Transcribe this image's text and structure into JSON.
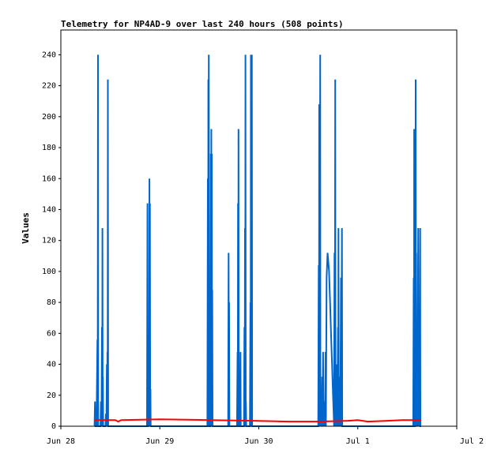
{
  "chart_data": {
    "type": "line",
    "title": "Telemetry for NP4AD-9 over last 240 hours (508 points)",
    "ylabel": "Values",
    "xlabel": "",
    "ylim": [
      0,
      256
    ],
    "xlim": [
      0,
      4
    ],
    "x_ticks": [
      {
        "x": 0,
        "label": "Jun 28"
      },
      {
        "x": 1,
        "label": "Jun 29"
      },
      {
        "x": 2,
        "label": "Jun 30"
      },
      {
        "x": 3,
        "label": "Jul 1"
      },
      {
        "x": 4,
        "label": "Jul 2"
      }
    ],
    "y_ticks": [
      0,
      20,
      40,
      60,
      80,
      100,
      120,
      140,
      160,
      180,
      200,
      220,
      240
    ],
    "grid": false,
    "legend": "none",
    "series": [
      {
        "color": "#0066cc",
        "points": [
          [
            0.34,
            0
          ],
          [
            0.345,
            16
          ],
          [
            0.35,
            0
          ],
          [
            0.36,
            0
          ],
          [
            0.37,
            56
          ],
          [
            0.372,
            0
          ],
          [
            0.375,
            240
          ],
          [
            0.378,
            0
          ],
          [
            0.4,
            0
          ],
          [
            0.405,
            16
          ],
          [
            0.41,
            0
          ],
          [
            0.415,
            64
          ],
          [
            0.418,
            0
          ],
          [
            0.42,
            128
          ],
          [
            0.423,
            0
          ],
          [
            0.425,
            32
          ],
          [
            0.428,
            0
          ],
          [
            0.45,
            0
          ],
          [
            0.455,
            8
          ],
          [
            0.46,
            0
          ],
          [
            0.465,
            40
          ],
          [
            0.468,
            0
          ],
          [
            0.47,
            48
          ],
          [
            0.473,
            0
          ],
          [
            0.475,
            224
          ],
          [
            0.478,
            0
          ],
          [
            0.49,
            0
          ],
          [
            0.87,
            0
          ],
          [
            0.875,
            144
          ],
          [
            0.878,
            0
          ],
          [
            0.88,
            0
          ],
          [
            0.89,
            40
          ],
          [
            0.892,
            0
          ],
          [
            0.895,
            160
          ],
          [
            0.898,
            0
          ],
          [
            0.9,
            144
          ],
          [
            0.903,
            0
          ],
          [
            0.905,
            24
          ],
          [
            0.908,
            0
          ],
          [
            1.48,
            0
          ],
          [
            1.485,
            160
          ],
          [
            1.488,
            0
          ],
          [
            1.49,
            224
          ],
          [
            1.493,
            0
          ],
          [
            1.495,
            240
          ],
          [
            1.498,
            0
          ],
          [
            1.51,
            0
          ],
          [
            1.515,
            176
          ],
          [
            1.518,
            0
          ],
          [
            1.52,
            192
          ],
          [
            1.523,
            0
          ],
          [
            1.525,
            176
          ],
          [
            1.528,
            0
          ],
          [
            1.53,
            88
          ],
          [
            1.533,
            0
          ],
          [
            1.69,
            0
          ],
          [
            1.695,
            112
          ],
          [
            1.698,
            0
          ],
          [
            1.7,
            80
          ],
          [
            1.703,
            0
          ],
          [
            1.78,
            0
          ],
          [
            1.785,
            48
          ],
          [
            1.788,
            0
          ],
          [
            1.79,
            144
          ],
          [
            1.793,
            0
          ],
          [
            1.795,
            192
          ],
          [
            1.798,
            0
          ],
          [
            1.81,
            0
          ],
          [
            1.815,
            48
          ],
          [
            1.818,
            0
          ],
          [
            1.85,
            0
          ],
          [
            1.855,
            64
          ],
          [
            1.858,
            0
          ],
          [
            1.86,
            128
          ],
          [
            1.863,
            0
          ],
          [
            1.865,
            240
          ],
          [
            1.868,
            0
          ],
          [
            1.87,
            16
          ],
          [
            1.873,
            0
          ],
          [
            1.91,
            0
          ],
          [
            1.915,
            80
          ],
          [
            1.918,
            0
          ],
          [
            1.92,
            240
          ],
          [
            1.923,
            0
          ],
          [
            1.93,
            240
          ],
          [
            1.933,
            0
          ],
          [
            2.6,
            0
          ],
          [
            2.605,
            104
          ],
          [
            2.608,
            0
          ],
          [
            2.61,
            208
          ],
          [
            2.613,
            0
          ],
          [
            2.62,
            240
          ],
          [
            2.623,
            0
          ],
          [
            2.63,
            16
          ],
          [
            2.633,
            0
          ],
          [
            2.64,
            32
          ],
          [
            2.643,
            0
          ],
          [
            2.65,
            48
          ],
          [
            2.653,
            0
          ],
          [
            2.665,
            16
          ],
          [
            2.668,
            0
          ],
          [
            2.675,
            48
          ],
          [
            2.678,
            0
          ],
          [
            2.685,
            96
          ],
          [
            2.69,
            104
          ],
          [
            2.695,
            112
          ],
          [
            2.7,
            108
          ],
          [
            2.71,
            100
          ],
          [
            2.72,
            80
          ],
          [
            2.73,
            60
          ],
          [
            2.74,
            40
          ],
          [
            2.75,
            20
          ],
          [
            2.755,
            10
          ],
          [
            2.76,
            0
          ],
          [
            2.765,
            112
          ],
          [
            2.768,
            0
          ],
          [
            2.772,
            224
          ],
          [
            2.775,
            0
          ],
          [
            2.78,
            16
          ],
          [
            2.783,
            0
          ],
          [
            2.79,
            40
          ],
          [
            2.793,
            0
          ],
          [
            2.8,
            64
          ],
          [
            2.803,
            0
          ],
          [
            2.805,
            128
          ],
          [
            2.808,
            0
          ],
          [
            2.82,
            32
          ],
          [
            2.823,
            0
          ],
          [
            2.83,
            96
          ],
          [
            2.833,
            0
          ],
          [
            2.84,
            128
          ],
          [
            2.843,
            0
          ],
          [
            3.56,
            0
          ],
          [
            3.565,
            96
          ],
          [
            3.568,
            0
          ],
          [
            3.57,
            192
          ],
          [
            3.573,
            0
          ],
          [
            3.58,
            0
          ],
          [
            3.585,
            224
          ],
          [
            3.588,
            0
          ],
          [
            3.59,
            112
          ],
          [
            3.593,
            0
          ],
          [
            3.6,
            32
          ],
          [
            3.603,
            0
          ],
          [
            3.61,
            128
          ],
          [
            3.613,
            0
          ],
          [
            3.615,
            64
          ],
          [
            3.618,
            0
          ],
          [
            3.62,
            16
          ],
          [
            3.623,
            0
          ],
          [
            3.63,
            128
          ],
          [
            3.633,
            0
          ],
          [
            3.64,
            0
          ]
        ]
      },
      {
        "color": "#ff0000",
        "points": [
          [
            0.34,
            4
          ],
          [
            0.55,
            4
          ],
          [
            0.58,
            3
          ],
          [
            0.61,
            4
          ],
          [
            1.0,
            4.5
          ],
          [
            1.5,
            4
          ],
          [
            1.95,
            3.5
          ],
          [
            2.3,
            3
          ],
          [
            2.6,
            3
          ],
          [
            2.9,
            3.5
          ],
          [
            3.0,
            4
          ],
          [
            3.1,
            3
          ],
          [
            3.3,
            3.5
          ],
          [
            3.45,
            4
          ],
          [
            3.64,
            4
          ]
        ]
      },
      {
        "color": "#000000",
        "points": [
          [
            0.34,
            0
          ],
          [
            3.64,
            0
          ]
        ]
      }
    ]
  }
}
